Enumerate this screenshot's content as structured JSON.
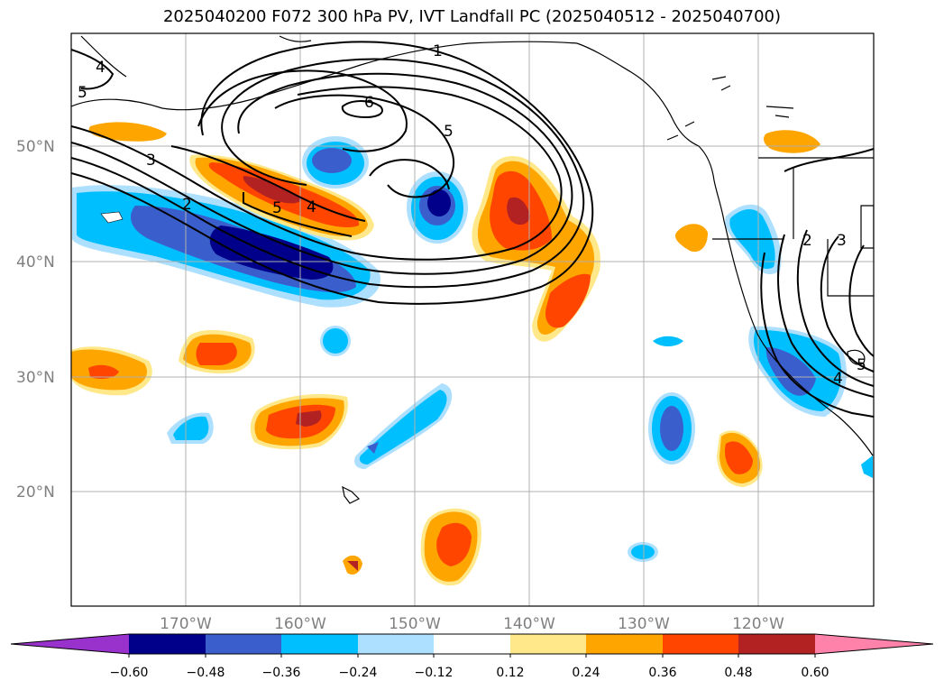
{
  "title": "2025040200 F072 300 hPa PV, IVT Landfall PC (2025040512 - 2025040700)",
  "map": {
    "lat_labels": [
      "50°N",
      "40°N",
      "30°N",
      "20°N"
    ],
    "lon_labels": [
      "170°W",
      "160°W",
      "150°W",
      "140°W",
      "130°W",
      "120°W"
    ],
    "contour_labels": [
      "1",
      "2",
      "3",
      "4",
      "5",
      "6"
    ]
  },
  "colorbar": {
    "ticks": [
      "−0.60",
      "−0.48",
      "−0.36",
      "−0.24",
      "−0.12",
      "0.12",
      "0.24",
      "0.36",
      "0.48",
      "0.60"
    ],
    "colors": [
      "#9932CC",
      "#00008B",
      "#3A5FCD",
      "#00BFFF",
      "#ADDFFF",
      "#FFFFFF",
      "#FFE88A",
      "#FFA500",
      "#FF4500",
      "#B22222",
      "#FF82AB"
    ]
  }
}
